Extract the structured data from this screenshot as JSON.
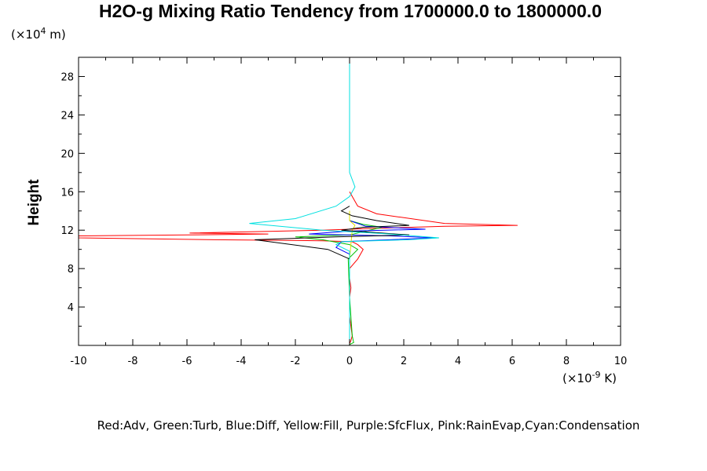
{
  "chart_data": {
    "type": "line",
    "title": "H2O-g Mixing Ratio Tendency from 1700000.0 to 1800000.0",
    "ylabel": "Height",
    "y_unit": {
      "prefix": "(×10",
      "exp": "4",
      "suffix": " m)"
    },
    "x_unit": {
      "prefix": "(×10",
      "exp": "-9",
      "suffix": " K)"
    },
    "xlim": [
      -10,
      10
    ],
    "ylim": [
      0,
      30
    ],
    "xticks": [
      "-10",
      "-8",
      "-6",
      "-4",
      "-2",
      "0",
      "2",
      "4",
      "6",
      "8",
      "10"
    ],
    "yticks": [
      "4",
      "8",
      "12",
      "16",
      "20",
      "24",
      "28"
    ],
    "grid": false,
    "legend_text": "Red:Adv, Green:Turb, Blue:Diff, Yellow:Fill, Purple:SfcFlux, Pink:RainEvap,Cyan:Condensation",
    "series": [
      {
        "name": "Red:Adv",
        "color": "#ff0000",
        "x": [
          0,
          0.05,
          0.1,
          0.05,
          0,
          0,
          0,
          0.05,
          0,
          0,
          0.3,
          0.5,
          0.3,
          0.1,
          -1,
          -5,
          -10,
          -10.2,
          -10,
          -6,
          -3,
          -5.9,
          -1,
          1,
          3.5,
          6.2,
          3.5,
          1,
          0.3,
          0
        ],
        "y": [
          0.2,
          0.5,
          1,
          2,
          3,
          4,
          5,
          6,
          7,
          8,
          9,
          10,
          10.5,
          10.8,
          10.9,
          11.0,
          11.2,
          11.3,
          11.4,
          11.5,
          11.6,
          11.7,
          12,
          12.2,
          12.4,
          12.5,
          12.7,
          13.7,
          14.5,
          16
        ]
      },
      {
        "name": "Green:Turb",
        "color": "#00c000",
        "x": [
          0,
          0.15,
          0.1,
          0,
          -0.05,
          0.3,
          0,
          -1,
          -2,
          0,
          1.2,
          0.5,
          0,
          0
        ],
        "y": [
          0.1,
          0.3,
          1,
          5,
          9,
          10,
          10.5,
          11,
          11.3,
          11.5,
          12.3,
          12.6,
          13,
          14
        ]
      },
      {
        "name": "Blue:Diff",
        "color": "#0000ff",
        "x": [
          0,
          0,
          0,
          -0.5,
          -0.3,
          3.2,
          1.5,
          -1.5,
          0,
          2.8,
          0.6,
          0
        ],
        "y": [
          0.2,
          5,
          9.5,
          10.2,
          10.8,
          11.2,
          11.4,
          11.6,
          11.9,
          12.1,
          12.4,
          13
        ]
      },
      {
        "name": "Yellow:Fill",
        "color": "#e0e000",
        "x": [
          0,
          0,
          0.1,
          0.2,
          0,
          0
        ],
        "y": [
          0.2,
          9,
          12,
          12.5,
          13,
          14
        ]
      },
      {
        "name": "Black",
        "color": "#000000",
        "x": [
          0,
          0,
          0,
          -0.8,
          -3.5,
          -0.5,
          2.2,
          1.2,
          -0.3,
          0.5,
          2.2,
          1,
          0.1,
          -0.3,
          0
        ],
        "y": [
          0,
          2,
          9,
          10,
          11,
          11.3,
          11.5,
          11.7,
          12,
          12.3,
          12.5,
          13,
          13.5,
          14,
          14.5
        ]
      },
      {
        "name": "Cyan:Condensation",
        "color": "#00e0e0",
        "x": [
          0,
          0,
          0,
          0,
          -0.5,
          -0.3,
          2.2,
          3.3,
          1.5,
          -1,
          -3.7,
          -2,
          -0.5,
          0,
          0.2,
          0,
          0
        ],
        "y": [
          0.3,
          5,
          8,
          9.8,
          10.5,
          10.8,
          11,
          11.2,
          11.6,
          12,
          12.7,
          13.2,
          14.5,
          15.5,
          16.5,
          18,
          29.5
        ]
      }
    ]
  }
}
